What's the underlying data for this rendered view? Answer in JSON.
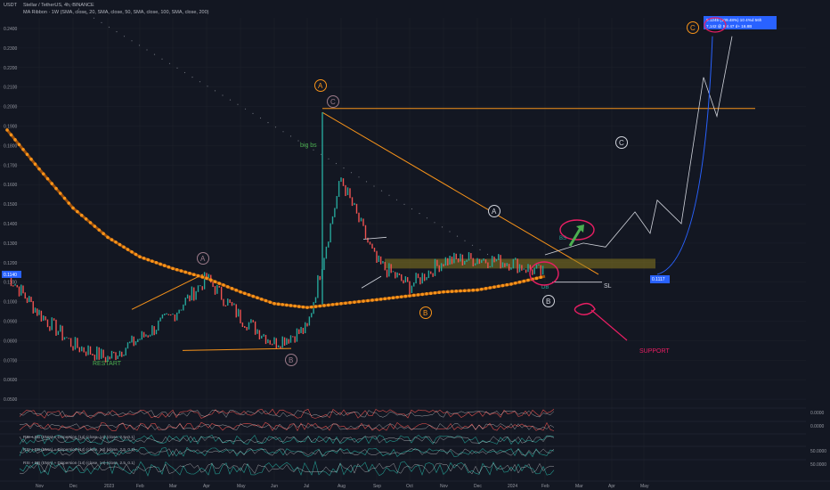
{
  "header": {
    "unit": "USDT",
    "symbol_line": "Stellar / TetherUS, 4h, BINANCE",
    "indicator_line": "MA Ribbon · 1W (SMA, close, 20, SMA, close, 50, SMA, close, 100, SMA, close, 200)"
  },
  "chart_data": [
    {
      "type": "line",
      "title": "Stellar / TetherUS, 4h, BINANCE",
      "x_axis": {
        "type": "date",
        "ticks": [
          "Nov",
          "Dec",
          "2023",
          "Feb",
          "Mar",
          "Apr",
          "May",
          "Jun",
          "Jul",
          "Aug",
          "Sep",
          "Oct",
          "Nov",
          "Dec",
          "2024",
          "Feb",
          "Mar",
          "Apr",
          "May"
        ]
      },
      "y_axis": {
        "ylim": [
          0.05,
          0.245
        ],
        "ticks": [
          "0.2400",
          "0.2300",
          "0.2200",
          "0.2100",
          "0.2000",
          "0.1900",
          "0.1800",
          "0.1700",
          "0.1600",
          "0.1500",
          "0.1400",
          "0.1300",
          "0.1200",
          "0.1100",
          "0.1000",
          "0.0900",
          "0.0800",
          "0.0700",
          "0.0600",
          "0.0500"
        ]
      },
      "current_price_label": "0.1140",
      "series": [
        {
          "kind": "price",
          "x": [
            "Oct",
            "Nov",
            "Dec",
            "2023",
            "Feb",
            "Mar",
            "Apr",
            "May",
            "Jun",
            "Jul",
            "Aug",
            "Sep",
            "Oct",
            "Nov",
            "Dec",
            "2024",
            "Feb"
          ],
          "values": [
            0.114,
            0.094,
            0.078,
            0.071,
            0.081,
            0.093,
            0.112,
            0.092,
            0.079,
            0.086,
            0.163,
            0.12,
            0.108,
            0.121,
            0.122,
            0.12,
            0.114
          ]
        },
        {
          "kind": "ma-ribbon",
          "x": [
            "Oct",
            "Nov",
            "Dec",
            "2023",
            "Feb",
            "Mar",
            "Apr",
            "May",
            "Jun",
            "Jul",
            "Aug",
            "Sep",
            "Oct",
            "Nov",
            "Dec",
            "2024",
            "Feb"
          ],
          "values": [
            0.188,
            0.168,
            0.148,
            0.133,
            0.123,
            0.117,
            0.112,
            0.105,
            0.099,
            0.097,
            0.099,
            0.101,
            0.103,
            0.105,
            0.106,
            0.109,
            0.113
          ]
        },
        {
          "kind": "projection",
          "x": [
            "Feb",
            "Mar",
            "Apr",
            "Apr",
            "Apr",
            "May",
            "May",
            "May"
          ],
          "values": [
            0.124,
            0.128,
            0.146,
            0.135,
            0.153,
            0.215,
            0.195,
            0.235
          ]
        }
      ],
      "annotations": {
        "wave_labels": [
          "A",
          "C",
          "A",
          "B",
          "B",
          "A",
          "B",
          "C",
          "C"
        ],
        "texts": [
          "big bs",
          "RESTART",
          "BS",
          "DB",
          "SL",
          "SUPPORT"
        ],
        "target_box": [
          "0.1245 (109.48%) 10 4%d 56h",
          "7,142 @ 5/4 47 d+ 16.8B"
        ],
        "target_price": "0.1117"
      },
      "colors": {
        "background": "#131722",
        "candles_up": "#26a69a",
        "candles_down": "#ef5350",
        "ribbon": "#f7931a",
        "trendline": "#f7931a",
        "annotation_red": "#e91e63",
        "target_box": "#2962ff"
      }
    },
    {
      "type": "line",
      "panels": [
        {
          "legend": "",
          "right_value": "0.0000"
        },
        {
          "legend": "",
          "right_value": "0.0000"
        },
        {
          "legend": "RSI + BB (EMA) + Dispersion (14) (close, 14) (close, 2.5, 0.1)",
          "right_value": ""
        },
        {
          "legend": "RSI + BB (EMA) + Dispersion (14) (close, 14) (close, 2.5, 0.1)",
          "right_value": "50.0000"
        },
        {
          "legend": "RSI + BB (EMA) + Dispersion (14) (close, 14) (close, 2.5, 0.1)",
          "right_value": "50.0000"
        }
      ]
    }
  ]
}
